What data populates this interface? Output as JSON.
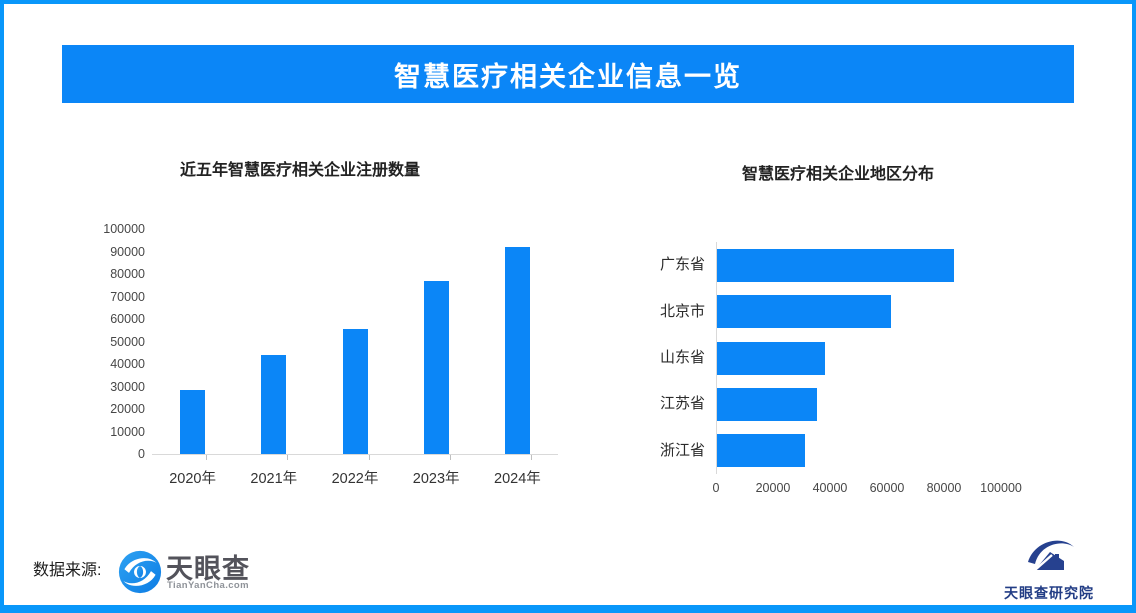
{
  "header": {
    "title": "智慧医疗相关企业信息一览"
  },
  "footer": {
    "source_label": "数据来源:",
    "tianyancha_logo": {
      "name": "天眼查",
      "subtext": "TianYanCha.com"
    },
    "research_logo": {
      "name": "天眼查研究院"
    }
  },
  "colors": {
    "border_blue": "#0997fa",
    "banner_blue": "#0b86f7",
    "bar_blue": "#0b86f7",
    "navy": "#26418f",
    "axis_gray": "#d9d9d9"
  },
  "chart_data": [
    {
      "type": "bar",
      "title": "近五年智慧医疗相关企业注册数量",
      "categories": [
        "2020年",
        "2021年",
        "2022年",
        "2023年",
        "2024年"
      ],
      "values": [
        28500,
        44000,
        55500,
        77000,
        92000
      ],
      "ylim": [
        0,
        100000
      ],
      "yticks": [
        0,
        10000,
        20000,
        30000,
        40000,
        50000,
        60000,
        70000,
        80000,
        90000,
        100000
      ],
      "grid": false,
      "legend": null,
      "bar_color": "#0b86f7"
    },
    {
      "type": "bar-horizontal",
      "title": "智慧医疗相关企业地区分布",
      "categories": [
        "广东省",
        "北京市",
        "山东省",
        "江苏省",
        "浙江省"
      ],
      "values": [
        83000,
        61000,
        38000,
        35000,
        31000
      ],
      "xlim": [
        0,
        100000
      ],
      "xticks": [
        0,
        20000,
        40000,
        60000,
        80000,
        100000
      ],
      "grid": false,
      "legend": null,
      "bar_color": "#0b86f7"
    }
  ]
}
